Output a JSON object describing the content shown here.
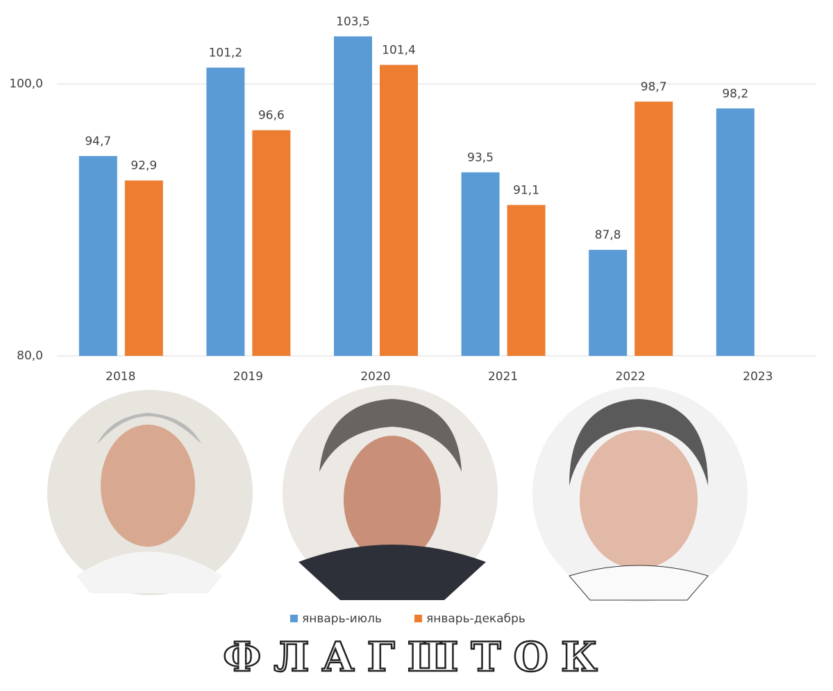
{
  "chart_data": {
    "type": "bar",
    "categories": [
      "2018",
      "2019",
      "2020",
      "2021",
      "2022",
      "2023"
    ],
    "series": [
      {
        "name": "январь-июль",
        "color": "#5b9bd5",
        "values": [
          94.7,
          101.2,
          103.5,
          93.5,
          87.8,
          98.2
        ],
        "value_labels": [
          "94,7",
          "101,2",
          "103,5",
          "93,5",
          "87,8",
          "98,2"
        ]
      },
      {
        "name": "январь-декабрь",
        "color": "#ed7d31",
        "values": [
          92.9,
          96.6,
          101.4,
          91.1,
          98.7,
          null
        ],
        "value_labels": [
          "92,9",
          "96,6",
          "101,4",
          "91,1",
          "98,7",
          null
        ]
      }
    ],
    "ylim": [
      80,
      106
    ],
    "yticks": [
      {
        "value": 80,
        "label": "80,0"
      },
      {
        "value": 100,
        "label": "100,0"
      }
    ],
    "grid": true,
    "legend": "bottom"
  },
  "watermark": "ФЛАГШТОК"
}
